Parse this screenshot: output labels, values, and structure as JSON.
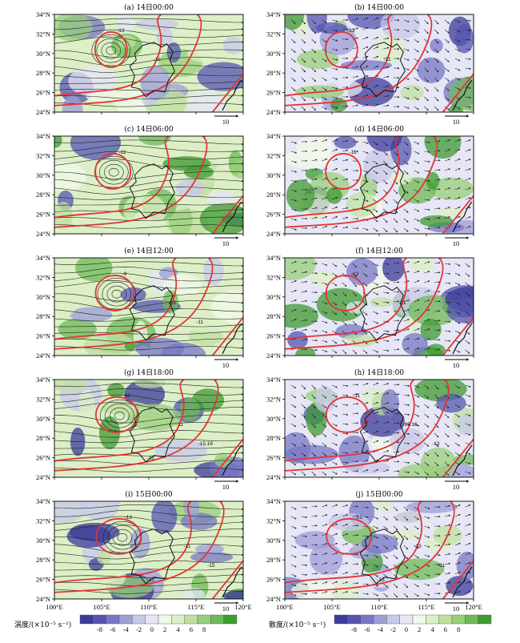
{
  "panels": [
    {
      "id": "a",
      "title": "(a) 14日00:00",
      "field": "vort",
      "contour_labels": [
        "-13",
        "-11"
      ],
      "ref_value": "10"
    },
    {
      "id": "b",
      "title": "(b) 14日00:00",
      "field": "div",
      "contour_labels": [
        "-13",
        "-11"
      ],
      "ref_value": "10"
    },
    {
      "id": "c",
      "title": "(c) 14日06:00",
      "field": "vort",
      "contour_labels": [
        "-11"
      ],
      "ref_value": "10"
    },
    {
      "id": "d",
      "title": "(d) 14日06:00",
      "field": "div",
      "contour_labels": [
        "-11"
      ],
      "ref_value": "10"
    },
    {
      "id": "e",
      "title": "(e) 14日12:00",
      "field": "vort",
      "contour_labels": [
        "-9",
        "-13",
        "-11"
      ],
      "ref_value": "10"
    },
    {
      "id": "f",
      "title": "(f) 14日12:00",
      "field": "div",
      "contour_labels": [
        "-13",
        "-11"
      ],
      "ref_value": "10"
    },
    {
      "id": "g",
      "title": "(g) 14日18:00",
      "field": "vort",
      "contour_labels": [
        "-13",
        "-11",
        "-15.16",
        "-13"
      ],
      "ref_value": "10"
    },
    {
      "id": "h",
      "title": "(h) 14日18:00",
      "field": "div",
      "contour_labels": [
        "-11",
        "-15.16",
        "-13"
      ],
      "ref_value": "10"
    },
    {
      "id": "i",
      "title": "(i) 15日00:00",
      "field": "vort",
      "contour_labels": [
        "-13",
        "-11",
        "-15",
        "-13"
      ],
      "ref_value": "10"
    },
    {
      "id": "j",
      "title": "(j) 15日00:00",
      "field": "div",
      "contour_labels": [
        "-15",
        "-13",
        "-11",
        "-13"
      ],
      "ref_value": "10"
    }
  ],
  "axes": {
    "lat_ticks": [
      "24°N",
      "26°N",
      "28°N",
      "30°N",
      "32°N",
      "34°N"
    ],
    "lon_ticks": [
      "100°E",
      "105°E",
      "110°E",
      "115°E",
      "120°E"
    ]
  },
  "legends": {
    "vorticity": {
      "label": "涡度/(×10⁻⁵ s⁻¹)",
      "ticks": [
        "-8",
        "-6",
        "-4",
        "-2",
        "0",
        "2",
        "4",
        "6",
        "8"
      ]
    },
    "divergence": {
      "label": "散度/(×10⁻⁵ s⁻¹)",
      "ticks": [
        "-8",
        "-6",
        "-4",
        "-2",
        "0",
        "2",
        "4",
        "6",
        "8"
      ]
    }
  },
  "colors": {
    "scale": [
      "#3b3b9a",
      "#5555b0",
      "#7777c6",
      "#9e9ed8",
      "#c8c8ea",
      "#e6e6f6",
      "#f2f8ea",
      "#dcefc6",
      "#bfe0a0",
      "#98cf7a",
      "#6fb957",
      "#3f9a32"
    ],
    "contour": "#e33434",
    "outline": "#111111",
    "vector": "#222222"
  }
}
